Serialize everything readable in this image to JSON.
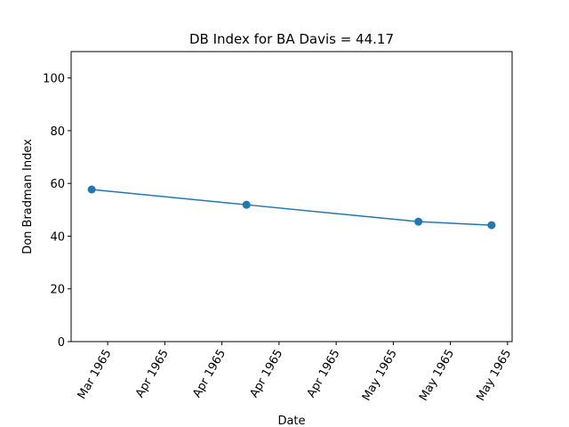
{
  "chart_data": {
    "type": "line",
    "title": "DB Index for BA Davis = 44.17",
    "x_label": "Date",
    "y_label": "Don Bradman Index",
    "x": [
      -0.28,
      2.43,
      5.44,
      6.72
    ],
    "series": [
      {
        "name": "DB Index",
        "color": "#1f77b4",
        "values": [
          57.7,
          51.9,
          45.5,
          44.17
        ]
      }
    ],
    "xlim": [
      -0.64,
      7.08
    ],
    "xticks": [
      {
        "value": 0,
        "label": "Mar 1965"
      },
      {
        "value": 1,
        "label": "Apr 1965"
      },
      {
        "value": 2,
        "label": "Apr 1965"
      },
      {
        "value": 3,
        "label": "Apr 1965"
      },
      {
        "value": 4,
        "label": "Apr 1965"
      },
      {
        "value": 5,
        "label": "May 1965"
      },
      {
        "value": 6,
        "label": "May 1965"
      },
      {
        "value": 7,
        "label": "May 1965"
      }
    ],
    "ylim": [
      0,
      110
    ],
    "yticks": [
      0,
      20,
      40,
      60,
      80,
      100
    ],
    "grid": false,
    "markers": true
  }
}
